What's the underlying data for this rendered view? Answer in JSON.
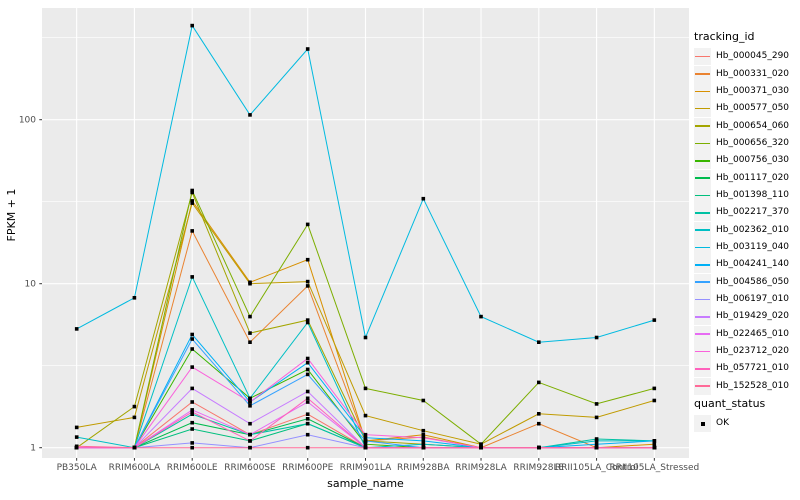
{
  "chart_data": {
    "type": "line",
    "title": "",
    "xlabel": "sample_name",
    "ylabel": "FPKM + 1",
    "y_scale": "log10",
    "y_ticks": [
      1,
      10,
      100
    ],
    "y_minor_ticks": [
      3.162,
      31.62,
      316.2
    ],
    "ylim": [
      0.87,
      480
    ],
    "grid": true,
    "panel_bg": "#EBEBEB",
    "grid_color": "#FFFFFF",
    "tick_label_color": "#4D4D4D",
    "marker": "black-square",
    "legend_title": "tracking_id",
    "legend_position": "right",
    "categories": [
      "PB350LA",
      "RRIM600LA",
      "RRIM600LE",
      "RRIM600SE",
      "RRIM600PE",
      "RRIM901LA",
      "RRIM928BA",
      "RRIM928LA",
      "RRIM928LE",
      "RRII105LA_Control",
      "RRII105LA_Stressed"
    ],
    "series": [
      {
        "name": "Hb_000045_290",
        "color": "#F8766D",
        "values": [
          1.0,
          1.0,
          1.9,
          1.2,
          1.6,
          1.0,
          1.0,
          1.0,
          1.0,
          1.0,
          1.0
        ]
      },
      {
        "name": "Hb_000331_020",
        "color": "#EA8331",
        "values": [
          1.0,
          1.0,
          21,
          4.4,
          9.7,
          1.1,
          1.16,
          1.0,
          1.4,
          1.0,
          1.0
        ]
      },
      {
        "name": "Hb_000371_030",
        "color": "#D89000",
        "values": [
          1.0,
          1.0,
          32,
          10.2,
          14,
          1.1,
          1.2,
          1.0,
          1.0,
          1.0,
          1.05
        ]
      },
      {
        "name": "Hb_000577_050",
        "color": "#C09B00",
        "values": [
          1.33,
          1.53,
          31,
          10.0,
          10.3,
          1.57,
          1.27,
          1.05,
          1.61,
          1.53,
          1.94
        ]
      },
      {
        "name": "Hb_000654_060",
        "color": "#A3A500",
        "values": [
          1.0,
          1.78,
          36,
          5.0,
          6.0,
          1.1,
          1.05,
          1.0,
          1.0,
          1.0,
          1.0
        ]
      },
      {
        "name": "Hb_000656_320",
        "color": "#7CAE00",
        "values": [
          1.0,
          1.0,
          37,
          6.3,
          23,
          2.3,
          1.94,
          1.05,
          2.5,
          1.85,
          2.3
        ]
      },
      {
        "name": "Hb_000756_030",
        "color": "#39B600",
        "values": [
          1.0,
          1.0,
          4.0,
          2.0,
          3.0,
          1.05,
          1.0,
          1.0,
          1.0,
          1.0,
          1.0
        ]
      },
      {
        "name": "Hb_001117_020",
        "color": "#00BB4E",
        "values": [
          1.0,
          1.0,
          1.42,
          1.2,
          1.5,
          1.0,
          1.0,
          1.0,
          1.0,
          1.0,
          1.0
        ]
      },
      {
        "name": "Hb_001398_110",
        "color": "#00BF7D",
        "values": [
          1.0,
          1.0,
          1.3,
          1.1,
          1.4,
          1.0,
          1.0,
          1.0,
          1.0,
          1.0,
          1.0
        ]
      },
      {
        "name": "Hb_002217_370",
        "color": "#00C1A3",
        "values": [
          1.0,
          1.0,
          1.6,
          1.2,
          1.4,
          1.0,
          1.0,
          1.0,
          1.0,
          1.13,
          1.1
        ]
      },
      {
        "name": "Hb_002362_010",
        "color": "#00BFC4",
        "values": [
          1.16,
          1.0,
          11,
          2.0,
          5.8,
          1.0,
          1.05,
          1.0,
          1.0,
          1.1,
          1.1
        ]
      },
      {
        "name": "Hb_003119_040",
        "color": "#00BAE0",
        "values": [
          5.3,
          8.2,
          375,
          107,
          270,
          4.7,
          33,
          6.3,
          4.4,
          4.7,
          6.0
        ]
      },
      {
        "name": "Hb_004241_140",
        "color": "#00B0F6",
        "values": [
          1.0,
          1.0,
          4.9,
          1.9,
          3.3,
          1.15,
          1.1,
          1.0,
          1.0,
          1.05,
          1.1
        ]
      },
      {
        "name": "Hb_004586_050",
        "color": "#35A2FF",
        "values": [
          1.0,
          1.0,
          4.6,
          1.8,
          2.8,
          1.1,
          1.0,
          1.0,
          1.0,
          1.0,
          1.0
        ]
      },
      {
        "name": "Hb_006197_010",
        "color": "#9590FF",
        "values": [
          1.0,
          1.0,
          1.07,
          1.0,
          1.2,
          1.0,
          1.0,
          1.0,
          1.0,
          1.0,
          1.0
        ]
      },
      {
        "name": "Hb_019429_020",
        "color": "#C77CFF",
        "values": [
          1.0,
          1.0,
          2.3,
          1.4,
          2.2,
          1.0,
          1.0,
          1.0,
          1.0,
          1.0,
          1.0
        ]
      },
      {
        "name": "Hb_022465_010",
        "color": "#E76BF3",
        "values": [
          1.0,
          1.0,
          1.7,
          1.2,
          1.9,
          1.0,
          1.0,
          1.0,
          1.0,
          1.0,
          1.0
        ]
      },
      {
        "name": "Hb_023712_020",
        "color": "#FA62DB",
        "values": [
          1.0,
          1.0,
          3.1,
          1.9,
          3.5,
          1.2,
          1.15,
          1.0,
          1.0,
          1.0,
          1.0
        ]
      },
      {
        "name": "Hb_057721_010",
        "color": "#FF62BC",
        "values": [
          1.0,
          1.0,
          1.65,
          1.1,
          2.0,
          1.0,
          1.0,
          1.0,
          1.0,
          1.0,
          1.0
        ]
      },
      {
        "name": "Hb_152528_010",
        "color": "#FF6A98",
        "values": [
          1.02,
          1.0,
          1.0,
          1.0,
          1.0,
          1.0,
          1.0,
          1.0,
          1.0,
          1.0,
          1.0
        ]
      }
    ],
    "legend2": {
      "title": "quant_status",
      "items": [
        {
          "label": "OK",
          "marker": "black-square"
        }
      ]
    }
  }
}
